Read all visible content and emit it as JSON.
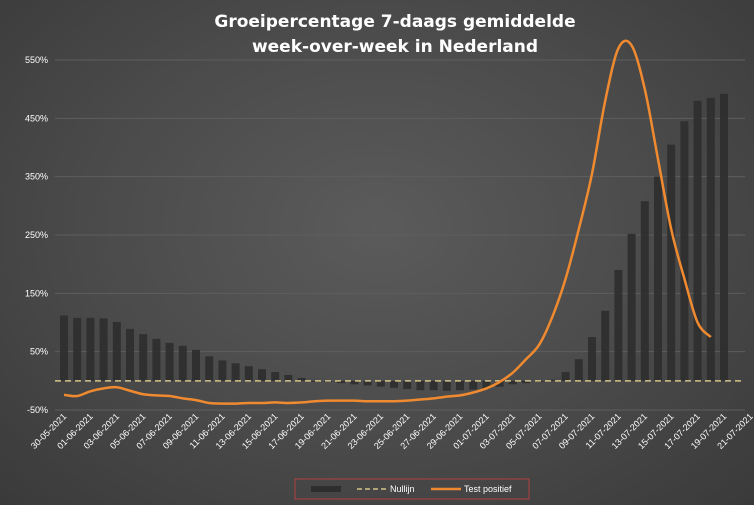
{
  "chart_data": {
    "type": "bar+line",
    "title_lines": [
      "Groeipercentage 7-daags gemiddelde",
      "week-over-week in Nederland"
    ],
    "y_ticks": [
      "550%",
      "450%",
      "350%",
      "250%",
      "150%",
      "50%",
      "-50%"
    ],
    "ylim": [
      -50,
      600
    ],
    "x_tick_labels": [
      "30-05-2021",
      "01-06-2021",
      "03-06-2021",
      "05-06-2021",
      "07-06-2021",
      "09-06-2021",
      "11-06-2021",
      "13-06-2021",
      "15-06-2021",
      "17-06-2021",
      "19-06-2021",
      "21-06-2021",
      "23-06-2021",
      "25-06-2021",
      "27-06-2021",
      "29-06-2021",
      "01-07-2021",
      "03-07-2021",
      "05-07-2021",
      "07-07-2021",
      "09-07-2021",
      "11-07-2021",
      "13-07-2021",
      "15-07-2021",
      "17-07-2021",
      "19-07-2021",
      "21-07-2021"
    ],
    "baseline": 0,
    "series": [
      {
        "name": "",
        "kind": "bar",
        "color": "#2e2e2e",
        "values": [
          112,
          108,
          108,
          107,
          101,
          89,
          80,
          72,
          65,
          60,
          53,
          42,
          35,
          30,
          25,
          20,
          15,
          10,
          5,
          0,
          -2,
          -4,
          -6,
          -8,
          -10,
          -12,
          -14,
          -16,
          -16,
          -17,
          -16,
          -15,
          -13,
          -10,
          -6,
          -4,
          -2,
          2,
          15,
          37,
          75,
          120,
          190,
          252,
          308,
          350,
          405,
          445,
          480,
          485,
          492
        ]
      },
      {
        "name": "Nullijn",
        "kind": "line",
        "color": "#d4c48a",
        "dashed": true,
        "value": 0
      },
      {
        "name": "Test positief",
        "kind": "line",
        "color": "#f08a30",
        "points": [
          [
            0,
            -24
          ],
          [
            1,
            -26
          ],
          [
            2,
            -18
          ],
          [
            3,
            -13
          ],
          [
            4,
            -11
          ],
          [
            5,
            -17
          ],
          [
            6,
            -23
          ],
          [
            7,
            -25
          ],
          [
            8,
            -26
          ],
          [
            9,
            -30
          ],
          [
            10,
            -33
          ],
          [
            11,
            -38
          ],
          [
            12,
            -39
          ],
          [
            13,
            -39
          ],
          [
            14,
            -38
          ],
          [
            15,
            -38
          ],
          [
            16,
            -37
          ],
          [
            17,
            -38
          ],
          [
            18,
            -37
          ],
          [
            19,
            -35
          ],
          [
            20,
            -34
          ],
          [
            21,
            -34
          ],
          [
            22,
            -34
          ],
          [
            23,
            -35
          ],
          [
            24,
            -35
          ],
          [
            25,
            -35
          ],
          [
            26,
            -34
          ],
          [
            27,
            -32
          ],
          [
            28,
            -30
          ],
          [
            29,
            -27
          ],
          [
            30,
            -25
          ],
          [
            31,
            -20
          ],
          [
            32,
            -13
          ],
          [
            33,
            -2
          ],
          [
            34,
            14
          ],
          [
            35,
            37
          ],
          [
            36,
            62
          ],
          [
            37,
            110
          ],
          [
            38,
            175
          ],
          [
            39,
            260
          ],
          [
            40,
            355
          ],
          [
            41,
            480
          ],
          [
            42,
            570
          ],
          [
            43,
            575
          ],
          [
            44,
            500
          ],
          [
            45,
            380
          ],
          [
            46,
            260
          ],
          [
            47,
            175
          ],
          [
            48,
            100
          ],
          [
            49,
            75
          ]
        ]
      }
    ],
    "legend": {
      "position": "bottom",
      "entries": [
        "",
        "Nullijn",
        "Test positief"
      ]
    },
    "grid": true
  }
}
